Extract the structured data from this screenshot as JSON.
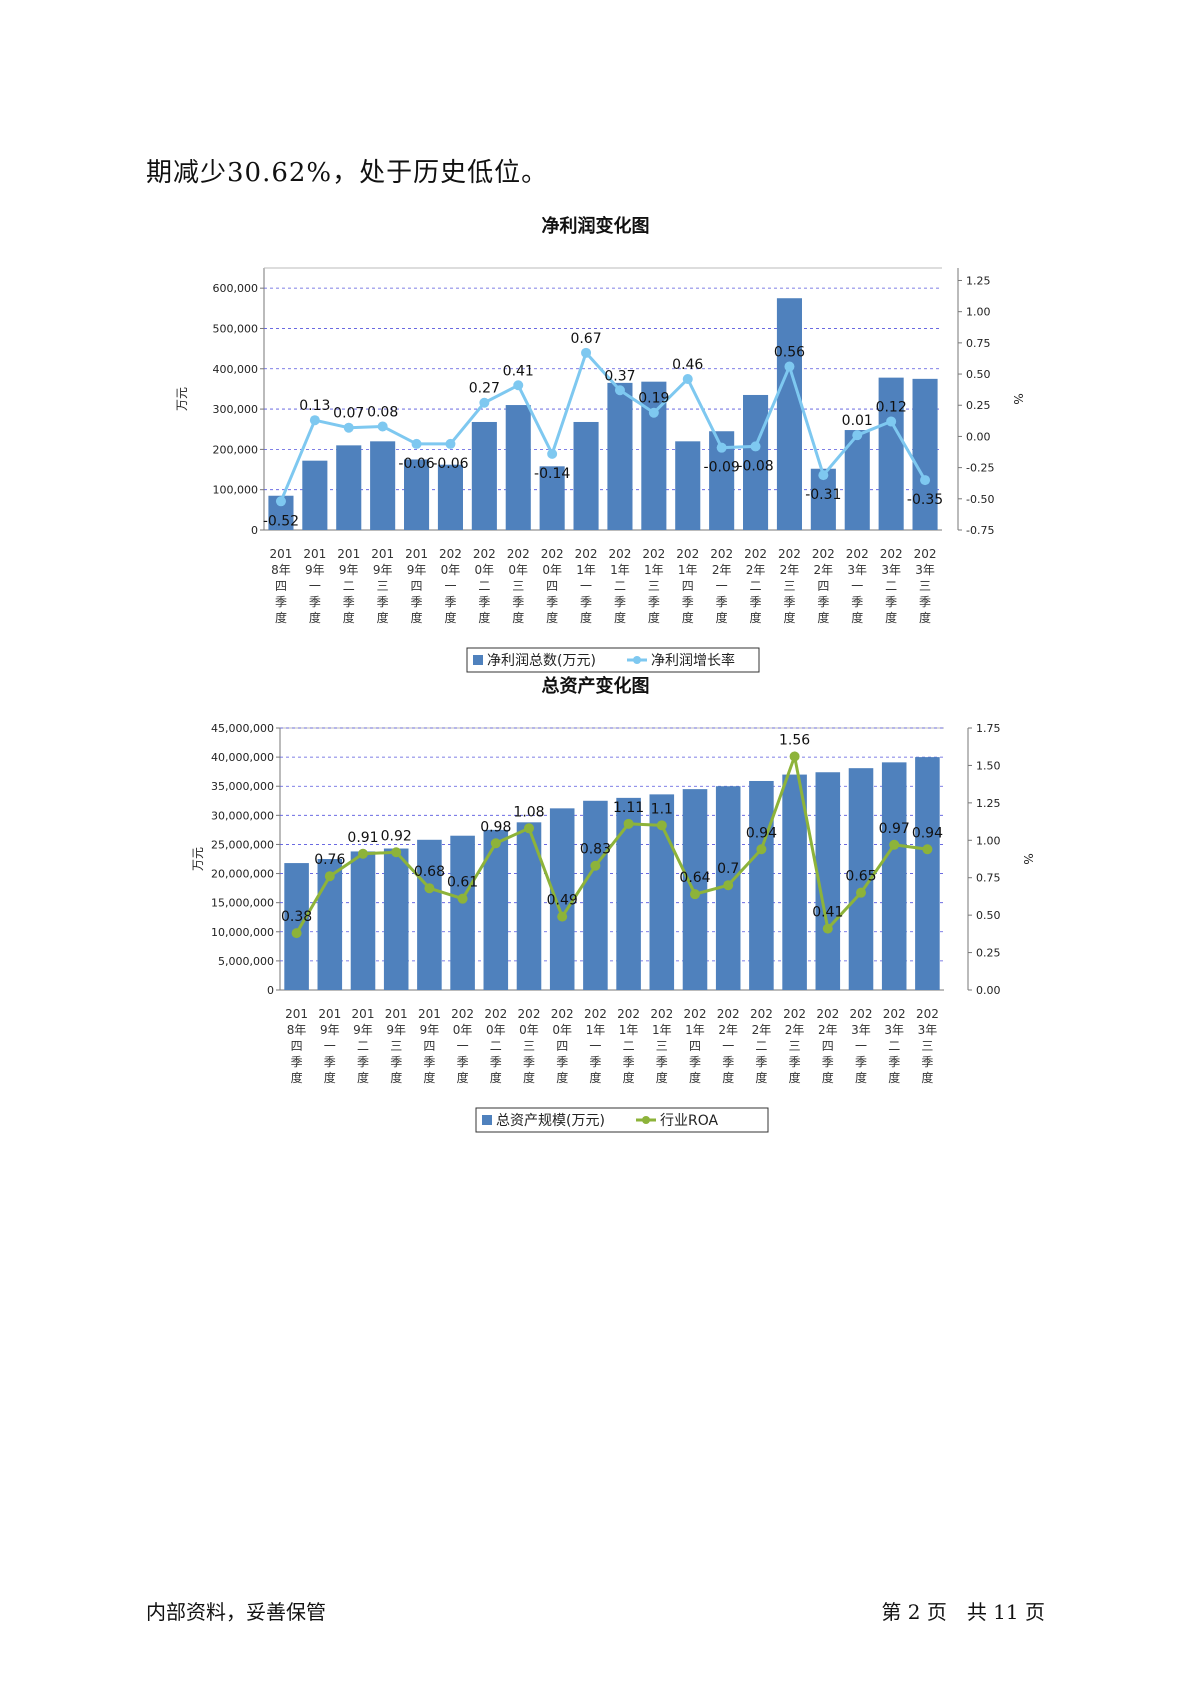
{
  "intro_text": "期减少30.62%，处于历史低位。",
  "footer": {
    "left": "内部资料，妥善保管",
    "right": "第 2 页　共 11 页"
  },
  "chart_data": [
    {
      "type": "bar",
      "title": "净利润变化图",
      "ylabel": "万元",
      "y2label": "%",
      "categories": [
        "2018年四季度",
        "2019年一季度",
        "2019年二季度",
        "2019年三季度",
        "2019年四季度",
        "2020年一季度",
        "2020年二季度",
        "2020年三季度",
        "2020年四季度",
        "2021年一季度",
        "2021年二季度",
        "2021年三季度",
        "2021年四季度",
        "2022年一季度",
        "2022年二季度",
        "2022年三季度",
        "2022年四季度",
        "2023年一季度",
        "2023年二季度",
        "2023年三季度"
      ],
      "ylim": [
        0,
        650000
      ],
      "y_ticks": [
        "0",
        "100,000",
        "200,000",
        "300,000",
        "400,000",
        "500,000",
        "600,000"
      ],
      "y2lim": [
        -0.75,
        1.35
      ],
      "y2_ticks": [
        "-0.75",
        "-0.50",
        "-0.25",
        "0.00",
        "0.25",
        "0.50",
        "0.75",
        "1.00",
        "1.25"
      ],
      "series": [
        {
          "name": "净利润总数(万元)",
          "axis": "left",
          "type": "bar",
          "color": "#4f81bd",
          "values": [
            85000,
            172000,
            210000,
            220000,
            175000,
            162000,
            268000,
            310000,
            158000,
            268000,
            365000,
            368000,
            220000,
            245000,
            335000,
            575000,
            152000,
            248000,
            378000,
            375000
          ]
        },
        {
          "name": "净利润增长率",
          "axis": "right",
          "type": "line",
          "color": "#7ec8f0",
          "values": [
            -0.52,
            0.13,
            0.07,
            0.08,
            -0.06,
            -0.06,
            0.27,
            0.41,
            -0.14,
            0.67,
            0.37,
            0.19,
            0.46,
            -0.09,
            -0.08,
            0.56,
            -0.31,
            0.01,
            0.12,
            -0.35
          ]
        }
      ],
      "legend": "bottom",
      "grid": true
    },
    {
      "type": "bar",
      "title": "总资产变化图",
      "ylabel": "万元",
      "y2label": "%",
      "categories": [
        "2018年四季度",
        "2019年一季度",
        "2019年二季度",
        "2019年三季度",
        "2019年四季度",
        "2020年一季度",
        "2020年二季度",
        "2020年三季度",
        "2020年四季度",
        "2021年一季度",
        "2021年二季度",
        "2021年三季度",
        "2021年四季度",
        "2022年一季度",
        "2022年二季度",
        "2022年三季度",
        "2022年四季度",
        "2023年一季度",
        "2023年二季度",
        "2023年三季度"
      ],
      "ylim": [
        0,
        45000000
      ],
      "y_ticks": [
        "0",
        "5,000,000",
        "10,000,000",
        "15,000,000",
        "20,000,000",
        "25,000,000",
        "30,000,000",
        "35,000,000",
        "40,000,000",
        "45,000,000"
      ],
      "y2lim": [
        0,
        1.75
      ],
      "y2_ticks": [
        "0.00",
        "0.25",
        "0.50",
        "0.75",
        "1.00",
        "1.25",
        "1.50",
        "1.75"
      ],
      "series": [
        {
          "name": "总资产规模(万元)",
          "axis": "left",
          "type": "bar",
          "color": "#4f81bd",
          "values": [
            21800000,
            22500000,
            23800000,
            24300000,
            25800000,
            26500000,
            27500000,
            28800000,
            31200000,
            32500000,
            33000000,
            33600000,
            34500000,
            35000000,
            35900000,
            37000000,
            37400000,
            38100000,
            39100000,
            40000000
          ]
        },
        {
          "name": "行业ROA",
          "axis": "right",
          "type": "line",
          "color": "#8db33a",
          "values": [
            0.38,
            0.76,
            0.91,
            0.92,
            0.68,
            0.61,
            0.98,
            1.08,
            0.49,
            0.83,
            1.11,
            1.1,
            0.64,
            0.7,
            0.94,
            1.56,
            0.41,
            0.65,
            0.97,
            0.94
          ]
        }
      ],
      "legend": "bottom",
      "grid": true
    }
  ]
}
